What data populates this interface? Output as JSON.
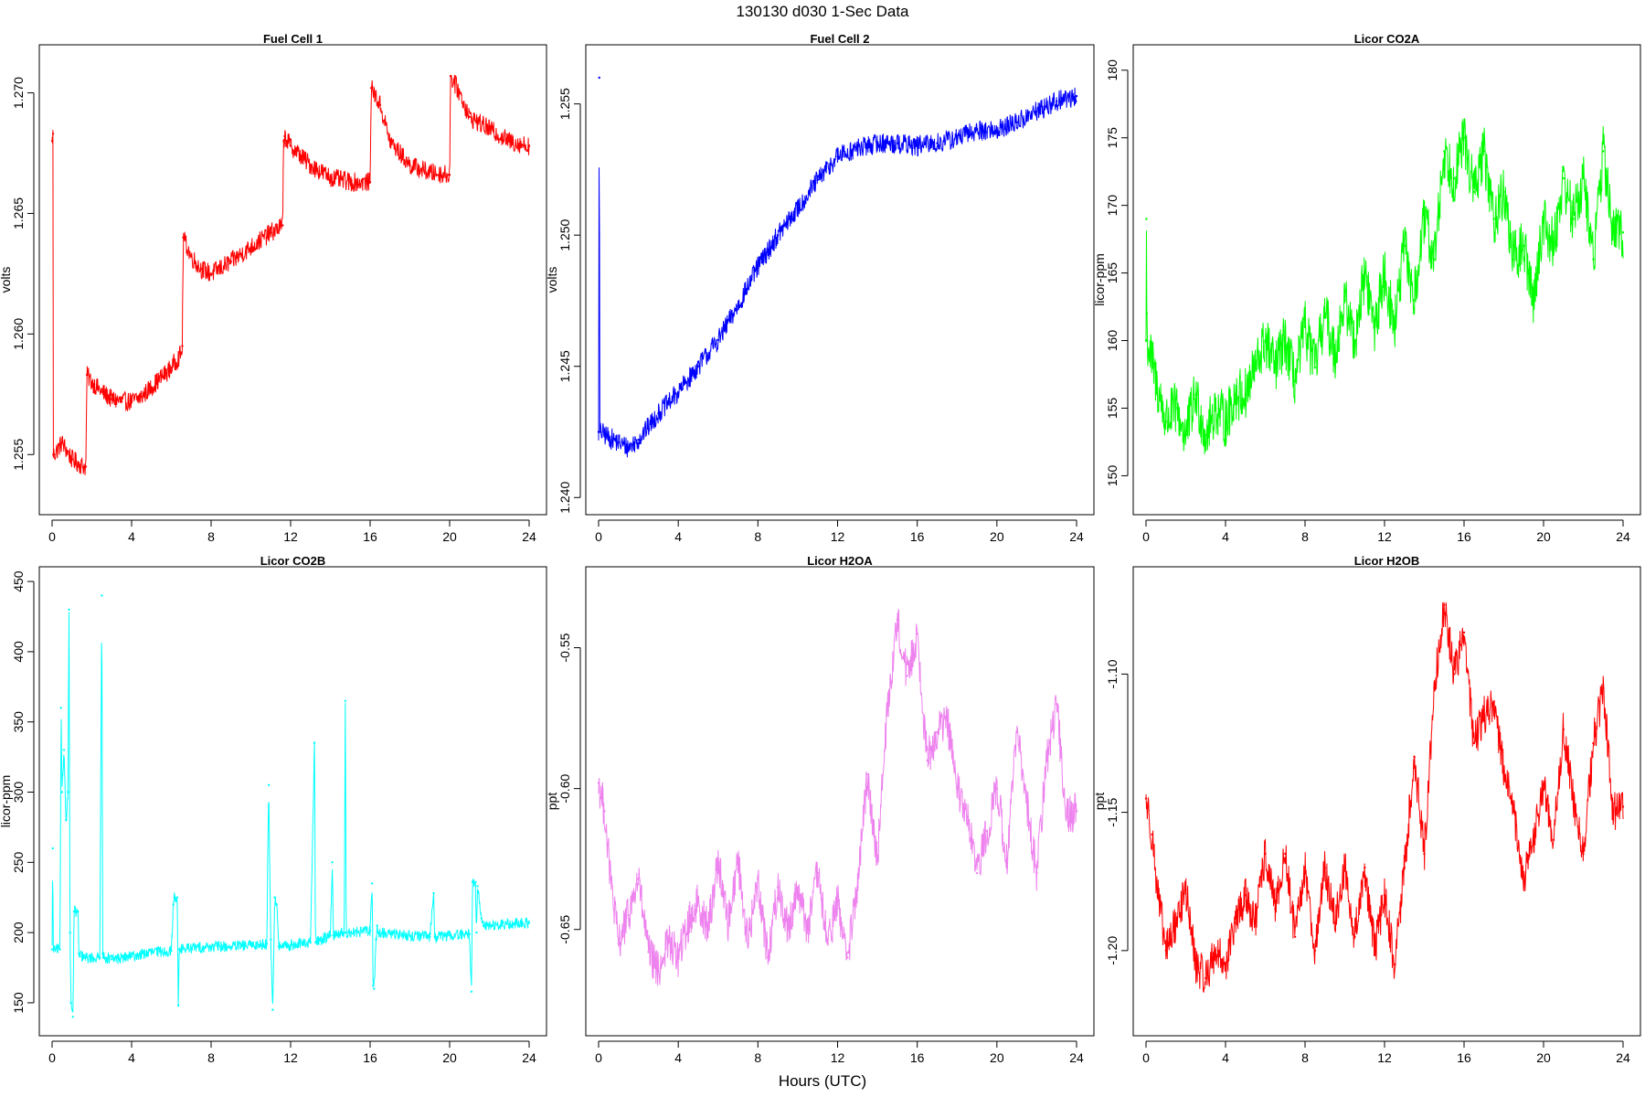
{
  "figure": {
    "title": "130130   d030   1-Sec Data",
    "xlabel": "Hours (UTC)"
  },
  "chart_data": [
    {
      "type": "line",
      "title": "Fuel Cell 1",
      "ylabel": "volts",
      "color": "#ff0000",
      "xlim": [
        0,
        24
      ],
      "ylim": [
        1.253,
        1.2715
      ],
      "xticks": [
        "0",
        "4",
        "8",
        "12",
        "16",
        "20",
        "24"
      ],
      "yticks": [
        1.255,
        1.26,
        1.265,
        1.27
      ],
      "ytick_labels": [
        "1.255",
        "1.260",
        "1.265",
        "1.270"
      ],
      "noise": 0.0004,
      "x": [
        0,
        0.05,
        0.06,
        0.1,
        0.5,
        1.0,
        1.6,
        1.7,
        1.75,
        2.0,
        2.5,
        3.0,
        3.5,
        4.0,
        4.5,
        5.0,
        5.5,
        6.0,
        6.5,
        6.55,
        6.6,
        7.0,
        7.5,
        8.0,
        9.0,
        10.0,
        11.0,
        11.6,
        11.65,
        11.7,
        12.0,
        13.0,
        14.0,
        15.0,
        15.95,
        16.0,
        16.05,
        16.5,
        17.0,
        18.0,
        19.0,
        19.95,
        20.0,
        20.05,
        20.5,
        21.0,
        22.0,
        23.0,
        24.0
      ],
      "values": [
        1.268,
        1.2683,
        1.255,
        1.255,
        1.2555,
        1.2548,
        1.2545,
        1.2545,
        1.2583,
        1.258,
        1.2576,
        1.2573,
        1.2572,
        1.2572,
        1.2574,
        1.2578,
        1.2582,
        1.2586,
        1.2592,
        1.2595,
        1.264,
        1.2632,
        1.2627,
        1.2625,
        1.263,
        1.2636,
        1.2642,
        1.2645,
        1.268,
        1.2682,
        1.2678,
        1.267,
        1.2665,
        1.2663,
        1.2663,
        1.2663,
        1.2702,
        1.2695,
        1.268,
        1.267,
        1.2667,
        1.2666,
        1.2666,
        1.2707,
        1.27,
        1.269,
        1.2685,
        1.268,
        1.2678
      ]
    },
    {
      "type": "line",
      "title": "Fuel Cell 2",
      "ylabel": "volts",
      "color": "#0000ff",
      "xlim": [
        0,
        24
      ],
      "ylim": [
        1.2398,
        1.2568
      ],
      "xticks": [
        "0",
        "4",
        "8",
        "12",
        "16",
        "20",
        "24"
      ],
      "yticks": [
        1.24,
        1.245,
        1.25,
        1.255
      ],
      "ytick_labels": [
        "1.240",
        "1.245",
        "1.250",
        "1.255"
      ],
      "noise": 0.0004,
      "x": [
        0,
        0.03,
        0.06,
        0.1,
        0.5,
        1.0,
        1.5,
        2.0,
        3.0,
        4.0,
        5.0,
        6.0,
        7.0,
        8.0,
        9.0,
        10.0,
        11.0,
        12.0,
        13.0,
        14.0,
        15.0,
        16.0,
        17.0,
        18.0,
        19.0,
        20.0,
        21.0,
        22.0,
        23.0,
        24.0
      ],
      "values": [
        1.2425,
        1.256,
        1.2425,
        1.2425,
        1.2423,
        1.2421,
        1.2419,
        1.2422,
        1.2432,
        1.244,
        1.245,
        1.246,
        1.2473,
        1.2488,
        1.25,
        1.251,
        1.2521,
        1.253,
        1.2533,
        1.2535,
        1.2535,
        1.2534,
        1.2535,
        1.2537,
        1.254,
        1.254,
        1.2543,
        1.2547,
        1.2551,
        1.2553
      ]
    },
    {
      "type": "line",
      "title": "Licor CO2A",
      "ylabel": "licor-ppm",
      "color": "#00ff00",
      "xlim": [
        0,
        24
      ],
      "ylim": [
        148,
        181
      ],
      "xticks": [
        "0",
        "4",
        "8",
        "12",
        "16",
        "20",
        "24"
      ],
      "yticks": [
        150,
        155,
        160,
        165,
        170,
        175,
        180
      ],
      "ytick_labels": [
        "150",
        "155",
        "160",
        "165",
        "170",
        "175",
        "180"
      ],
      "noise": 2.0,
      "x": [
        0,
        0.02,
        0.04,
        0.06,
        0.5,
        1.0,
        1.5,
        2.0,
        2.5,
        3.0,
        3.5,
        4.0,
        4.5,
        5.0,
        5.5,
        6.0,
        6.5,
        7.0,
        7.5,
        8.0,
        8.5,
        9.0,
        9.5,
        10.0,
        10.5,
        11.0,
        11.5,
        12.0,
        12.5,
        13.0,
        13.5,
        14.0,
        14.5,
        15.0,
        15.5,
        16.0,
        16.5,
        17.0,
        17.5,
        18.0,
        18.5,
        19.0,
        19.5,
        20.0,
        20.5,
        21.0,
        21.5,
        22.0,
        22.5,
        23.0,
        23.5,
        24.0
      ],
      "values": [
        160,
        169,
        162,
        160,
        157,
        154,
        155,
        153,
        156,
        153,
        155,
        154,
        156,
        156,
        158,
        160,
        158,
        160,
        157,
        161,
        158,
        162,
        159,
        163,
        160,
        165,
        161,
        165,
        161,
        167,
        163,
        169,
        166,
        174,
        172,
        175,
        171,
        174,
        169,
        171,
        166,
        167,
        163,
        169,
        167,
        172,
        169,
        172,
        166,
        174,
        168,
        168
      ]
    },
    {
      "type": "line",
      "title": "Licor CO2B",
      "ylabel": "licor-ppm",
      "color": "#00ffff",
      "xlim": [
        0,
        24
      ],
      "ylim": [
        135,
        452
      ],
      "xticks": [
        "0",
        "4",
        "8",
        "12",
        "16",
        "20",
        "24"
      ],
      "yticks": [
        150,
        200,
        250,
        300,
        350,
        400,
        450
      ],
      "ytick_labels": [
        "150",
        "200",
        "250",
        "300",
        "350",
        "400",
        "450"
      ],
      "noise": 4,
      "x": [
        0,
        0.03,
        0.06,
        0.4,
        0.45,
        0.5,
        0.6,
        0.7,
        0.8,
        0.85,
        0.9,
        0.95,
        1.05,
        1.1,
        1.15,
        1.3,
        1.35,
        1.4,
        1.55,
        1.6,
        2.0,
        2.4,
        2.5,
        2.55,
        2.6,
        2.7,
        3.0,
        4.0,
        5.0,
        6.0,
        6.1,
        6.15,
        6.3,
        6.35,
        6.4,
        7.0,
        8.0,
        9.0,
        10.0,
        10.8,
        10.9,
        11.0,
        11.1,
        11.2,
        11.3,
        11.4,
        11.45,
        12.0,
        13.0,
        13.2,
        13.25,
        13.3,
        13.5,
        14.0,
        14.1,
        14.15,
        14.7,
        14.75,
        14.8,
        15.0,
        16.0,
        16.1,
        16.15,
        16.2,
        16.3,
        16.35,
        16.4,
        17.0,
        18.0,
        19.0,
        19.2,
        19.25,
        19.3,
        20.0,
        21.0,
        21.1,
        21.15,
        21.3,
        21.35,
        21.4,
        21.6,
        21.7,
        22.0,
        23.0,
        24.0
      ],
      "values": [
        188,
        260,
        188,
        188,
        360,
        300,
        330,
        280,
        300,
        430,
        200,
        150,
        140,
        215,
        215,
        215,
        185,
        183,
        183,
        182,
        182,
        182,
        440,
        185,
        182,
        182,
        181,
        183,
        186,
        187,
        220,
        225,
        225,
        148,
        188,
        189,
        190,
        190,
        191,
        192,
        305,
        195,
        145,
        225,
        220,
        190,
        190,
        191,
        193,
        335,
        193,
        194,
        195,
        198,
        250,
        198,
        200,
        365,
        200,
        200,
        201,
        235,
        162,
        160,
        195,
        205,
        200,
        199,
        198,
        197,
        228,
        197,
        197,
        198,
        199,
        158,
        236,
        236,
        200,
        233,
        210,
        205,
        205,
        206,
        207
      ]
    },
    {
      "type": "line",
      "title": "Licor H2OA",
      "ylabel": "ppt",
      "color": "#ee82ee",
      "xlim": [
        0,
        24
      ],
      "ylim": [
        -0.6835,
        -0.5255
      ],
      "xticks": [
        "0",
        "4",
        "8",
        "12",
        "16",
        "20",
        "24"
      ],
      "yticks": [
        -0.65,
        -0.6,
        -0.55
      ],
      "ytick_labels": [
        "-0.65",
        "-0.60",
        "-0.55"
      ],
      "noise": 0.007,
      "x": [
        0,
        0.3,
        0.6,
        1.0,
        1.5,
        2.0,
        2.5,
        3.0,
        3.5,
        4.0,
        4.5,
        5.0,
        5.5,
        6.0,
        6.5,
        7.0,
        7.5,
        8.0,
        8.5,
        9.0,
        9.5,
        10.0,
        10.5,
        11.0,
        11.5,
        12.0,
        12.5,
        13.0,
        13.5,
        14.0,
        14.5,
        15.0,
        15.5,
        16.0,
        16.5,
        17.0,
        17.5,
        18.0,
        18.5,
        19.0,
        19.5,
        20.0,
        20.5,
        21.0,
        21.5,
        22.0,
        22.5,
        23.0,
        23.5,
        24.0
      ],
      "values": [
        -0.598,
        -0.608,
        -0.632,
        -0.655,
        -0.645,
        -0.632,
        -0.658,
        -0.665,
        -0.654,
        -0.66,
        -0.648,
        -0.64,
        -0.65,
        -0.625,
        -0.648,
        -0.625,
        -0.655,
        -0.632,
        -0.66,
        -0.635,
        -0.65,
        -0.635,
        -0.65,
        -0.63,
        -0.655,
        -0.64,
        -0.66,
        -0.635,
        -0.595,
        -0.625,
        -0.572,
        -0.54,
        -0.56,
        -0.545,
        -0.59,
        -0.58,
        -0.575,
        -0.6,
        -0.61,
        -0.63,
        -0.615,
        -0.6,
        -0.625,
        -0.58,
        -0.605,
        -0.63,
        -0.59,
        -0.57,
        -0.61,
        -0.608
      ]
    },
    {
      "type": "line",
      "title": "Licor H2OB",
      "ylabel": "ppt",
      "color": "#ff0000",
      "xlim": [
        0,
        24
      ],
      "ylim": [
        -1.2265,
        -1.0655
      ],
      "xticks": [
        "0",
        "4",
        "8",
        "12",
        "16",
        "20",
        "24"
      ],
      "yticks": [
        -1.2,
        -1.15,
        -1.1
      ],
      "ytick_labels": [
        "-1.20",
        "-1.15",
        "-1.10"
      ],
      "noise": 0.007,
      "x": [
        0,
        0.3,
        0.6,
        1.0,
        1.5,
        2.0,
        2.5,
        3.0,
        3.5,
        4.0,
        4.5,
        5.0,
        5.5,
        6.0,
        6.5,
        7.0,
        7.5,
        8.0,
        8.5,
        9.0,
        9.5,
        10.0,
        10.5,
        11.0,
        11.5,
        12.0,
        12.5,
        13.0,
        13.5,
        14.0,
        14.5,
        15.0,
        15.5,
        16.0,
        16.5,
        17.0,
        17.5,
        18.0,
        18.5,
        19.0,
        19.5,
        20.0,
        20.5,
        21.0,
        21.5,
        22.0,
        22.5,
        23.0,
        23.5,
        24.0
      ],
      "values": [
        -1.145,
        -1.158,
        -1.18,
        -1.2,
        -1.19,
        -1.178,
        -1.205,
        -1.21,
        -1.2,
        -1.205,
        -1.19,
        -1.18,
        -1.19,
        -1.165,
        -1.185,
        -1.165,
        -1.195,
        -1.17,
        -1.2,
        -1.17,
        -1.19,
        -1.17,
        -1.195,
        -1.17,
        -1.2,
        -1.18,
        -1.205,
        -1.17,
        -1.13,
        -1.165,
        -1.105,
        -1.075,
        -1.1,
        -1.085,
        -1.125,
        -1.115,
        -1.11,
        -1.135,
        -1.15,
        -1.175,
        -1.16,
        -1.14,
        -1.16,
        -1.12,
        -1.145,
        -1.165,
        -1.125,
        -1.105,
        -1.15,
        -1.148
      ]
    }
  ]
}
